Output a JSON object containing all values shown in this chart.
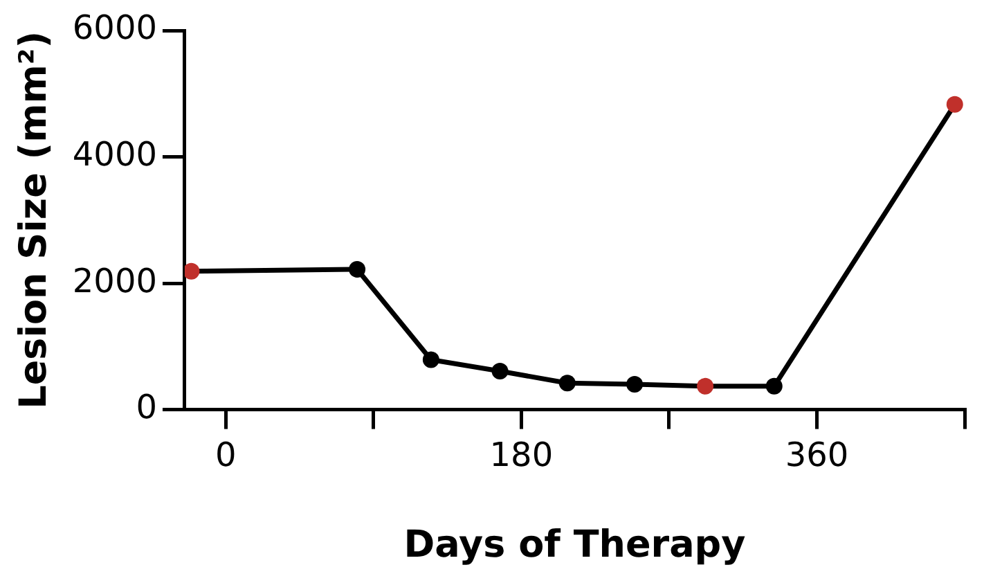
{
  "chart_data": {
    "type": "line",
    "xlabel": "Days of Therapy",
    "ylabel": "Lesion Size (mm²)",
    "x": [
      -21,
      80,
      125,
      167,
      208,
      249,
      292,
      334,
      444
    ],
    "series": [
      {
        "color": "#000000",
        "colors": [
          "#c0302b",
          "#000000",
          "#000000",
          "#000000",
          "#000000",
          "#000000",
          "#c0302b",
          "#000000",
          "#c0302b"
        ],
        "values": [
          2190,
          2220,
          790,
          610,
          420,
          400,
          370,
          370,
          4830
        ]
      }
    ],
    "xlim": [
      -25,
      450
    ],
    "xticks": [
      0,
      {
        "value": 90,
        "label": null
      },
      180,
      {
        "value": 270,
        "label": null
      },
      360,
      {
        "value": 450,
        "label": null
      }
    ],
    "ylim": [
      0,
      6000
    ],
    "yticks": [
      0,
      2000,
      4000,
      6000
    ],
    "grid": false,
    "legend": false,
    "marker": "circle",
    "line_style": "solid"
  }
}
